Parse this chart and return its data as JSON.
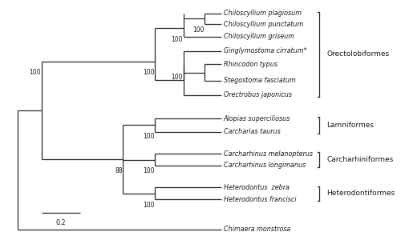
{
  "taxa": [
    "Chiloscyllium plagiosum",
    "Chiloscyllium punctatum",
    "Chiloscyllium griseum",
    "Ginglymostoma cirratum*",
    "Rhincodon typus",
    "Stegostoma fasciatum",
    "Orectrobus japonicus",
    "Alopias superciliosus",
    "Carcharias taurus",
    "Carcharhinus melanopterus",
    "Carcharhinus longimanus",
    "Heterodontus  zebra",
    "Heterodontus francisci",
    "Chimaera monstrosa"
  ],
  "background_color": "#ffffff",
  "line_color": "#2a2a2a",
  "text_color": "#1a1a1a",
  "fontsize_taxa": 5.8,
  "fontsize_bootstrap": 5.5,
  "fontsize_clade": 6.5,
  "fontsize_scale": 5.8
}
